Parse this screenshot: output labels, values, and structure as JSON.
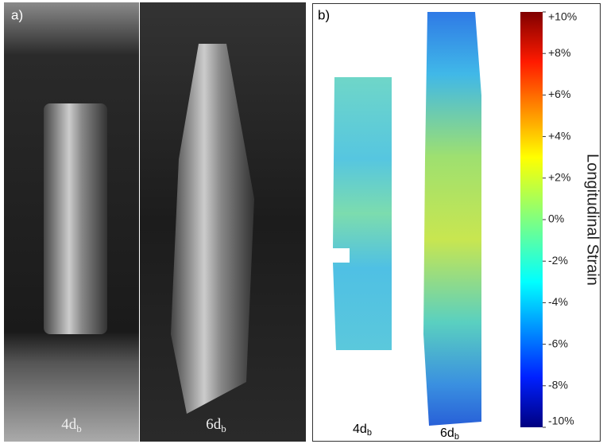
{
  "panels": {
    "a": {
      "label": "a)",
      "specimens": [
        {
          "main": "4d",
          "sub": "b"
        },
        {
          "main": "6d",
          "sub": "b"
        }
      ]
    },
    "b": {
      "label": "b)",
      "specimens": [
        {
          "main": "4d",
          "sub": "b"
        },
        {
          "main": "6d",
          "sub": "b"
        }
      ],
      "colorbar": {
        "title": "Longitudinal Strain",
        "ticks": [
          {
            "value": 10,
            "label": "+10%"
          },
          {
            "value": 8,
            "label": "+8%"
          },
          {
            "value": 6,
            "label": "+6%"
          },
          {
            "value": 4,
            "label": "+4%"
          },
          {
            "value": 2,
            "label": "+2%"
          },
          {
            "value": 0,
            "label": "0%"
          },
          {
            "value": -2,
            "label": "-2%"
          },
          {
            "value": -4,
            "label": "-4%"
          },
          {
            "value": -6,
            "label": "-6%"
          },
          {
            "value": -8,
            "label": "-8%"
          },
          {
            "value": -10,
            "label": "-10%"
          }
        ]
      }
    }
  }
}
